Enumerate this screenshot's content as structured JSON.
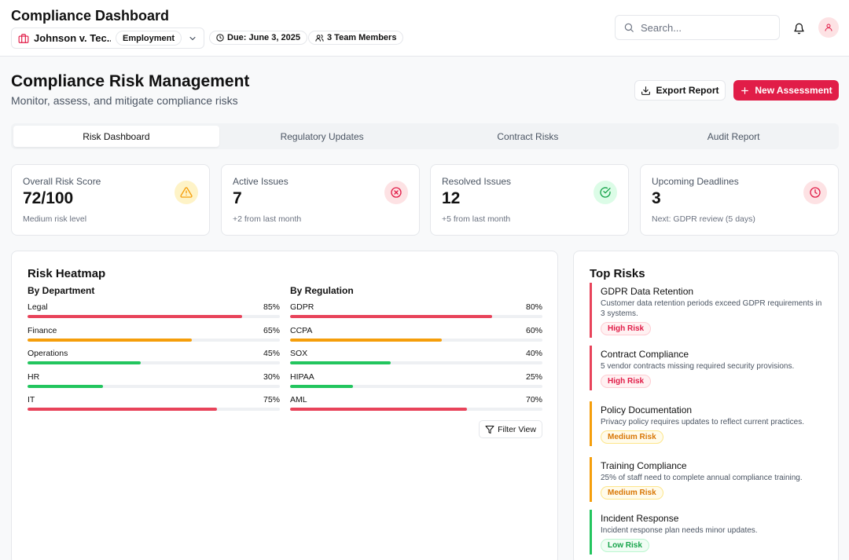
{
  "header": {
    "app_title": "Compliance Dashboard",
    "case_name": "Johnson v. Tec...",
    "case_type": "Employment",
    "due": "Due: June 3, 2025",
    "team": "3 Team Members",
    "search_placeholder": "Search..."
  },
  "page": {
    "title": "Compliance Risk Management",
    "subtitle": "Monitor, assess, and mitigate compliance risks",
    "export_label": "Export Report",
    "new_label": "New Assessment"
  },
  "tabs": [
    "Risk Dashboard",
    "Regulatory Updates",
    "Contract Risks",
    "Audit Report"
  ],
  "stats": [
    {
      "label": "Overall Risk Score",
      "value": "72/100",
      "sub": "Medium risk level",
      "icon": "warning-icon",
      "color": "#f59e0b",
      "bg": "#fef3c7"
    },
    {
      "label": "Active Issues",
      "value": "7",
      "sub": "+2 from last month",
      "icon": "x-circle-icon",
      "color": "#e11d48",
      "bg": "#fde2e4"
    },
    {
      "label": "Resolved Issues",
      "value": "12",
      "sub": "+5 from last month",
      "icon": "check-circle-icon",
      "color": "#16a34a",
      "bg": "#dcfce7"
    },
    {
      "label": "Upcoming Deadlines",
      "value": "3",
      "sub": "Next: GDPR review (5 days)",
      "icon": "clock-icon",
      "color": "#e11d48",
      "bg": "#fde2e4"
    }
  ],
  "heatmap": {
    "title": "Risk Heatmap",
    "department_title": "By Department",
    "regulation_title": "By Regulation",
    "filter_label": "Filter View",
    "departments": [
      {
        "name": "Legal",
        "value": 85,
        "label": "85%",
        "color": "#e8435a"
      },
      {
        "name": "Finance",
        "value": 65,
        "label": "65%",
        "color": "#f59e0b"
      },
      {
        "name": "Operations",
        "value": 45,
        "label": "45%",
        "color": "#22c55e"
      },
      {
        "name": "HR",
        "value": 30,
        "label": "30%",
        "color": "#22c55e"
      },
      {
        "name": "IT",
        "value": 75,
        "label": "75%",
        "color": "#e8435a"
      }
    ],
    "regulations": [
      {
        "name": "GDPR",
        "value": 80,
        "label": "80%",
        "color": "#e8435a"
      },
      {
        "name": "CCPA",
        "value": 60,
        "label": "60%",
        "color": "#f59e0b"
      },
      {
        "name": "SOX",
        "value": 40,
        "label": "40%",
        "color": "#22c55e"
      },
      {
        "name": "HIPAA",
        "value": 25,
        "label": "25%",
        "color": "#22c55e"
      },
      {
        "name": "AML",
        "value": 70,
        "label": "70%",
        "color": "#e8435a"
      }
    ]
  },
  "top_risks": {
    "title": "Top Risks",
    "items": [
      {
        "title": "GDPR Data Retention",
        "desc": "Customer data retention periods exceed GDPR requirements in 3 systems.",
        "badge": "High Risk",
        "level": "high"
      },
      {
        "title": "Contract Compliance",
        "desc": "5 vendor contracts missing required security provisions.",
        "badge": "High Risk",
        "level": "high"
      },
      {
        "title": "Policy Documentation",
        "desc": "Privacy policy requires updates to reflect current practices.",
        "badge": "Medium Risk",
        "level": "medium"
      },
      {
        "title": "Training Compliance",
        "desc": "25% of staff need to complete annual compliance training.",
        "badge": "Medium Risk",
        "level": "medium"
      },
      {
        "title": "Incident Response",
        "desc": "Incident response plan needs minor updates.",
        "badge": "Low Risk",
        "level": "low"
      }
    ]
  },
  "colors": {
    "accent": "#e11d48",
    "high": "#e8435a",
    "medium": "#f59e0b",
    "low": "#22c55e"
  }
}
